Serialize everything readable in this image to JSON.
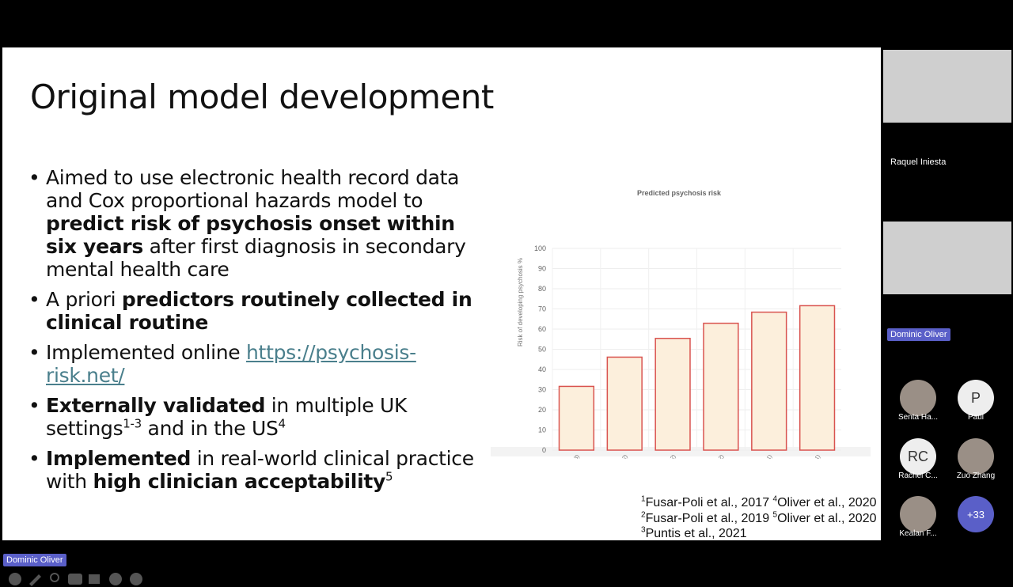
{
  "slide": {
    "title": "Original model development",
    "bullets": [
      [
        {
          "text": "Aimed to use electronic health record data and Cox proportional hazards model to "
        },
        {
          "text": "predict risk of psychosis onset within six years",
          "style": "bold"
        },
        {
          "text": " after first diagnosis in secondary mental health care"
        }
      ],
      [
        {
          "text": "A priori "
        },
        {
          "text": "predictors routinely collected in clinical routine",
          "style": "bold"
        }
      ],
      [
        {
          "text": "Implemented online "
        },
        {
          "text": "https://psychosis-risk.net/",
          "style": "link"
        }
      ],
      [
        {
          "text": "Externally validated",
          "style": "bold"
        },
        {
          "text": " in multiple UK settings"
        },
        {
          "text": "1-3",
          "style": "sup"
        },
        {
          "text": " and in the US"
        },
        {
          "text": "4",
          "style": "sup"
        }
      ],
      [
        {
          "text": "Implemented",
          "style": "bold"
        },
        {
          "text": " in real-world clinical practice with "
        },
        {
          "text": "high clinician acceptability",
          "style": "bold"
        },
        {
          "text": "5",
          "style": "sup"
        }
      ]
    ],
    "references": [
      [
        {
          "text": "1",
          "style": "sup"
        },
        {
          "text": "Fusar-Poli et al., 2017 "
        },
        {
          "text": "4",
          "style": "sup"
        },
        {
          "text": "Oliver et al., 2020"
        }
      ],
      [
        {
          "text": "2",
          "style": "sup"
        },
        {
          "text": "Fusar-Poli et al., 2019 "
        },
        {
          "text": "5",
          "style": "sup"
        },
        {
          "text": "Oliver et al., 2020"
        }
      ],
      [
        {
          "text": "3",
          "style": "sup"
        },
        {
          "text": "Puntis et al., 2021"
        }
      ]
    ]
  },
  "chart_data": {
    "type": "bar",
    "title": "Predicted psychosis risk",
    "y_label": "Risk of developing psychosis %",
    "categories": [
      "1 Year: 31.6% (1:3)",
      "2 Years: 46.1% (1:2)",
      "3 Years: 55.4% (1:2)",
      "4 Years: 62.9% (1:2)",
      "5 Years: 68.4% (1:1)",
      "6 Years: 71.6% (1:1)"
    ],
    "values": [
      31.6,
      46.1,
      55.4,
      62.9,
      68.4,
      71.6
    ],
    "color": "#fcefdc",
    "edge_color": "#d9534f",
    "ylim": [
      0,
      100
    ],
    "yticks": [
      0,
      10,
      20,
      30,
      40,
      50,
      60,
      70,
      80,
      90,
      100
    ],
    "grid": true
  },
  "presenter": "Dominic Oliver",
  "videos": [
    {
      "name": "Raquel Iniesta"
    },
    {
      "name": "Dominic Oliver"
    }
  ],
  "participants": [
    {
      "name": "Senta Ha...",
      "photo": true
    },
    {
      "name": "Paul",
      "initials": "P"
    },
    {
      "name": "Rachel C...",
      "initials": "RC"
    },
    {
      "name": "Zuo Zhang",
      "photo": true
    },
    {
      "name": "Kealan F...",
      "photo": true
    },
    {
      "more": "+33"
    }
  ]
}
